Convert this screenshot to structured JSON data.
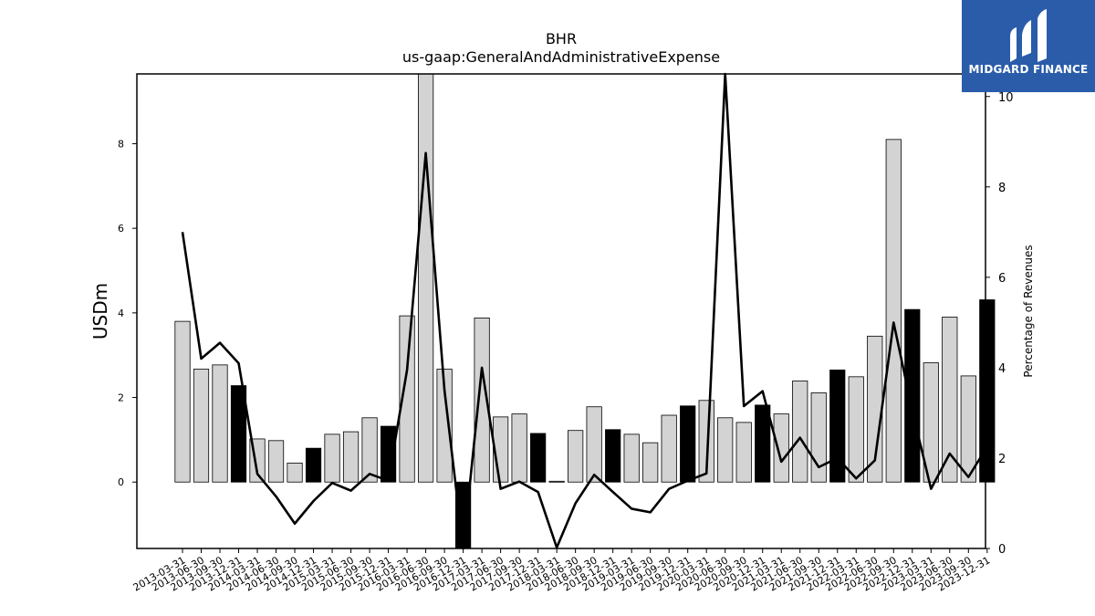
{
  "chart_data": {
    "type": "bar",
    "title": "BHR",
    "subtitle": "us-gaap:GeneralAndAdministrativeExpense",
    "ylabel": "USDm",
    "y2label": "Percentage of Revenues",
    "ylim": [
      -1.57,
      9.65
    ],
    "y2lim": [
      0,
      10.5
    ],
    "yticks": [
      0,
      2,
      4,
      6,
      8
    ],
    "y2ticks": [
      0,
      2,
      4,
      6,
      8,
      10
    ],
    "grid": false,
    "categories": [
      "2013-03-31",
      "2013-06-30",
      "2013-09-30",
      "2013-12-31",
      "2014-03-31",
      "2014-06-30",
      "2014-09-30",
      "2014-12-31",
      "2015-03-31",
      "2015-06-30",
      "2015-09-30",
      "2015-12-31",
      "2016-03-31",
      "2016-06-30",
      "2016-09-30",
      "2016-12-31",
      "2017-03-31",
      "2017-06-30",
      "2017-09-30",
      "2017-12-31",
      "2018-03-31",
      "2018-06-30",
      "2018-09-30",
      "2018-12-31",
      "2019-03-31",
      "2019-06-30",
      "2019-09-30",
      "2019-12-31",
      "2020-03-31",
      "2020-06-30",
      "2020-09-30",
      "2020-12-31",
      "2021-03-31",
      "2021-06-30",
      "2021-09-30",
      "2021-12-31",
      "2022-03-31",
      "2022-06-30",
      "2022-09-30",
      "2022-12-31",
      "2023-03-31",
      "2023-06-30",
      "2023-09-30",
      "2023-12-31"
    ],
    "series": [
      {
        "type": "bar",
        "values": [
          3.8,
          2.67,
          2.77,
          2.28,
          1.02,
          0.98,
          0.45,
          0.8,
          1.13,
          1.19,
          1.52,
          1.32,
          3.93,
          9.65,
          2.67,
          -1.57,
          3.88,
          1.54,
          1.61,
          1.15,
          0.02,
          1.22,
          1.78,
          1.24,
          1.13,
          0.93,
          1.58,
          1.8,
          1.93,
          1.52,
          1.41,
          1.82,
          1.61,
          2.39,
          2.11,
          2.65,
          2.49,
          3.45,
          8.1,
          4.08,
          2.82,
          3.9,
          2.51,
          4.31
        ],
        "highlight": [
          false,
          false,
          false,
          true,
          false,
          false,
          false,
          true,
          false,
          false,
          false,
          true,
          false,
          false,
          false,
          true,
          false,
          false,
          false,
          true,
          false,
          false,
          false,
          true,
          false,
          false,
          false,
          true,
          false,
          false,
          false,
          true,
          false,
          false,
          false,
          true,
          false,
          false,
          false,
          true,
          false,
          false,
          false,
          true
        ],
        "color": "#d3d3d3",
        "highlight_color": "#000000"
      },
      {
        "type": "line",
        "axis": "right",
        "values": [
          7.0,
          4.2,
          4.55,
          4.1,
          1.65,
          1.15,
          0.55,
          1.05,
          1.45,
          1.28,
          1.65,
          1.5,
          3.95,
          8.75,
          3.5,
          0.0,
          4.0,
          1.32,
          1.48,
          1.25,
          0.02,
          1.0,
          1.63,
          1.25,
          0.88,
          0.8,
          1.32,
          1.5,
          1.66,
          10.5,
          3.15,
          3.48,
          1.92,
          2.45,
          1.8,
          2.0,
          1.55,
          1.95,
          5.0,
          3.05,
          1.32,
          2.1,
          1.58,
          2.25
        ],
        "color": "#000000"
      }
    ]
  },
  "logo": {
    "text": "MIDGARD FINANCE"
  }
}
